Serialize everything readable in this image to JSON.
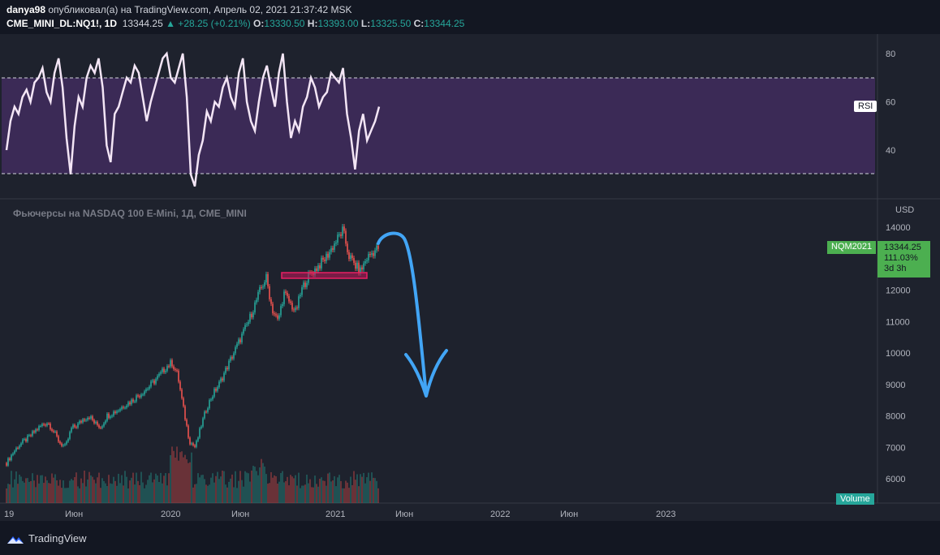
{
  "header": {
    "author": "danya98",
    "published_text": "опубликовал(а) на TradingView.com, Апрель 02, 2021 21:37:42 MSK",
    "symbol": "CME_MINI_DL:NQ1!, 1D",
    "last": "13344.25",
    "change": "▲ +28.25 (+0.21%)",
    "o_label": "O:",
    "o": "13330.50",
    "h_label": "H:",
    "h": "13393.00",
    "l_label": "L:",
    "l": "13325.50",
    "c_label": "C:",
    "c": "13344.25"
  },
  "series_title": "Фьючерсы на NASDAQ 100 E-Mini, 1Д, CME_MINI",
  "rsi_label": "RSI",
  "currency": "USD",
  "price_tag": {
    "symbol": "NQM2021",
    "price": "13344.25",
    "pct": "111.03%",
    "time": "3d 3h"
  },
  "volume_label": "Volume",
  "footer": {
    "brand": "TradingView"
  },
  "colors": {
    "up": "#26a69a",
    "down": "#ef5350",
    "rsi_line": "#f3e5f5",
    "rsi_band": "#3b2a56",
    "arrow": "#42a5f5",
    "zone": "#c2185b"
  },
  "chart_data": [
    {
      "type": "line",
      "title": "RSI",
      "ylim": [
        20,
        90
      ],
      "y_ticks": [
        40,
        60,
        80
      ],
      "bands": [
        30,
        70
      ],
      "series": [
        {
          "name": "RSI",
          "values": [
            40,
            52,
            58,
            55,
            62,
            65,
            60,
            68,
            70,
            74,
            64,
            60,
            72,
            78,
            66,
            45,
            30,
            50,
            62,
            58,
            70,
            75,
            72,
            78,
            66,
            42,
            35,
            55,
            58,
            64,
            70,
            68,
            75,
            72,
            62,
            52,
            60,
            66,
            72,
            78,
            80,
            70,
            68,
            74,
            80,
            62,
            30,
            25,
            38,
            44,
            56,
            52,
            60,
            58,
            66,
            70,
            62,
            58,
            72,
            78,
            60,
            52,
            48,
            60,
            70,
            75,
            66,
            58,
            72,
            80,
            60,
            45,
            52,
            48,
            58,
            62,
            70,
            66,
            58,
            62,
            64,
            72,
            70,
            68,
            74,
            55,
            45,
            32,
            48,
            55,
            44,
            48,
            52,
            58
          ]
        }
      ]
    },
    {
      "type": "candlestick",
      "title": "Фьючерсы на NASDAQ 100 E-Mini, 1Д, CME_MINI",
      "ylim": [
        5400,
        14400
      ],
      "y_ticks": [
        6000,
        7000,
        8000,
        9000,
        10000,
        11000,
        12000,
        13000,
        14000
      ],
      "x_ticks": [
        "19",
        "Июн",
        "2020",
        "Июн",
        "2021",
        "Июн",
        "2022",
        "Июн",
        "2023"
      ],
      "close_path": [
        6500,
        6800,
        7050,
        7200,
        7350,
        7550,
        7700,
        7800,
        7500,
        7150,
        7000,
        7600,
        7700,
        7900,
        8000,
        7750,
        7650,
        8000,
        8100,
        8200,
        8350,
        8450,
        8600,
        8750,
        8900,
        9100,
        9300,
        9550,
        9700,
        9300,
        8200,
        7200,
        7000,
        7700,
        8300,
        8700,
        9000,
        9400,
        9800,
        10200,
        10600,
        11000,
        11500,
        12000,
        12400,
        11400,
        11000,
        11900,
        11600,
        11300,
        12000,
        12400,
        12600,
        12800,
        13000,
        13300,
        13600,
        13900,
        13100,
        12800,
        12600,
        13000,
        13200,
        13344
      ],
      "last_price": 13344.25,
      "annotations": [
        "resistance zone ~12450",
        "projected arrow down toward ~8700"
      ]
    }
  ]
}
